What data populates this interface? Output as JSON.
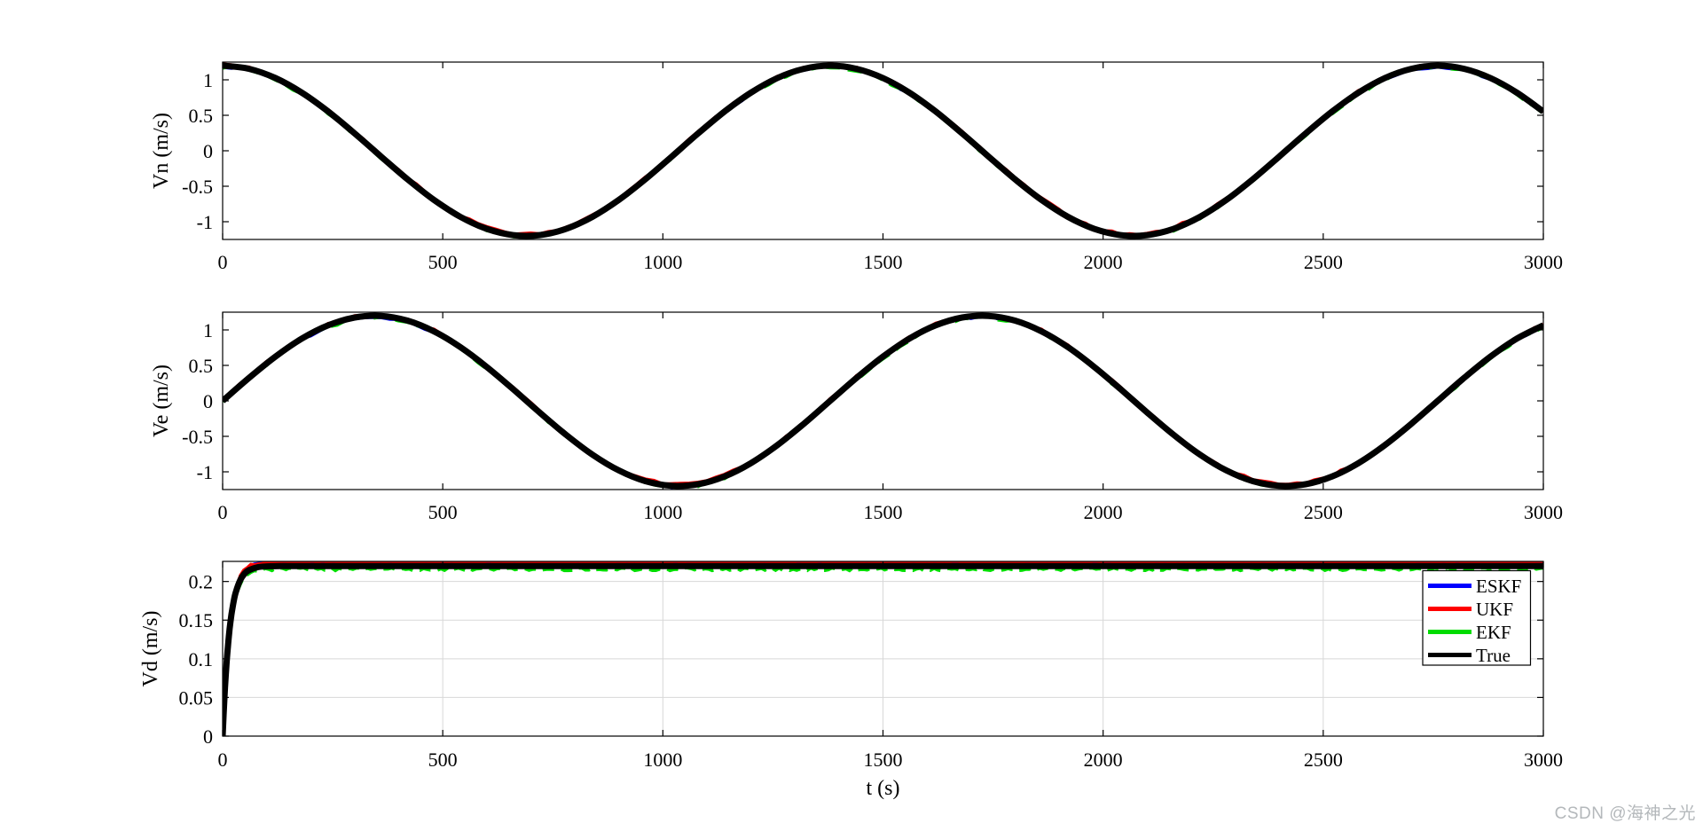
{
  "watermark": {
    "text": "CSDN @海神之光",
    "color": "#b4b8bb"
  },
  "figure": {
    "background": "#ffffff",
    "text_color": "#000000",
    "grid_color": "#d8d8d8",
    "axis_color": "#000000"
  },
  "legend": {
    "entries": [
      "ESKF",
      "UKF",
      "EKF",
      "True"
    ],
    "colors": [
      "#0000ff",
      "#ff0000",
      "#00dc00",
      "#000000"
    ],
    "position": "inside top-right of third subplot",
    "border_color": "#000000",
    "background": "#ffffff"
  },
  "chart_data": [
    {
      "type": "line",
      "title": "",
      "ylabel": "Vn (m/s)",
      "xlabel": "",
      "xlim": [
        0,
        3000
      ],
      "ylim": [
        -1.25,
        1.25
      ],
      "xticks": [
        0,
        500,
        1000,
        1500,
        2000,
        2500,
        3000
      ],
      "xtick_labels": [
        "0",
        "500",
        "1000",
        "1500",
        "2000",
        "2500",
        "3000"
      ],
      "yticks": [
        1,
        0.5,
        0,
        -0.5,
        -1
      ],
      "ytick_labels": [
        "1",
        "0.5",
        "0",
        "-0.5",
        "-1"
      ],
      "grid": false,
      "note": "Vn = 1.2*cos(2*pi*t/1380); ESKF, UKF, EKF estimates visually overlap the True curve",
      "t": [
        0,
        60,
        120,
        180,
        240,
        300,
        360,
        420,
        480,
        540,
        600,
        660,
        720,
        780,
        840,
        900,
        960,
        1020,
        1080,
        1140,
        1200,
        1260,
        1320,
        1380,
        1440,
        1500,
        1560,
        1620,
        1680,
        1740,
        1800,
        1860,
        1920,
        1980,
        2040,
        2100,
        2160,
        2220,
        2280,
        2340,
        2400,
        2460,
        2520,
        2580,
        2640,
        2700,
        2760,
        2820,
        2880,
        2940,
        3000
      ],
      "true_y": [
        1.2,
        1.1555,
        1.0253,
        0.8191,
        0.5521,
        0.2441,
        -0.0819,
        -0.4019,
        -0.692,
        -0.9309,
        -1.1007,
        -1.1888,
        -1.1888,
        -1.1007,
        -0.9309,
        -0.692,
        -0.4019,
        -0.0819,
        0.2441,
        0.5521,
        0.8191,
        1.0253,
        1.1555,
        1.2,
        1.1555,
        1.0253,
        0.8191,
        0.5521,
        0.2441,
        -0.0819,
        -0.4019,
        -0.692,
        -0.9309,
        -1.1007,
        -1.1888,
        -1.1888,
        -1.1007,
        -0.9309,
        -0.692,
        -0.4019,
        -0.0819,
        0.2441,
        0.5521,
        0.8191,
        1.0253,
        1.1555,
        1.2,
        1.1555,
        1.0253,
        0.8191,
        0.5521
      ],
      "series": [
        {
          "name": "ESKF",
          "color": "#0000ff",
          "width": 4,
          "offset": -0.006,
          "noise": 0.015,
          "dash": ""
        },
        {
          "name": "UKF",
          "color": "#ff0000",
          "width": 4,
          "offset": 0.013,
          "noise": 0.016,
          "dash": ""
        },
        {
          "name": "EKF",
          "color": "#00dc00",
          "width": 4,
          "offset": -0.015,
          "noise": 0.018,
          "dash": "16 9"
        },
        {
          "name": "True",
          "color": "#000000",
          "width": 7,
          "offset": 0,
          "noise": 0,
          "dash": ""
        }
      ]
    },
    {
      "type": "line",
      "title": "",
      "ylabel": "Ve (m/s)",
      "xlabel": "",
      "xlim": [
        0,
        3000
      ],
      "ylim": [
        -1.25,
        1.25
      ],
      "xticks": [
        0,
        500,
        1000,
        1500,
        2000,
        2500,
        3000
      ],
      "xtick_labels": [
        "0",
        "500",
        "1000",
        "1500",
        "2000",
        "2500",
        "3000"
      ],
      "yticks": [
        1,
        0.5,
        0,
        -0.5,
        -1
      ],
      "ytick_labels": [
        "1",
        "0.5",
        "0",
        "-0.5",
        "-1"
      ],
      "grid": false,
      "note": "Ve = 1.2*sin(2*pi*t/1380); ESKF, UKF, EKF estimates visually overlap the True curve",
      "t": [
        0,
        60,
        120,
        180,
        240,
        300,
        360,
        420,
        480,
        540,
        600,
        660,
        720,
        780,
        840,
        900,
        960,
        1020,
        1080,
        1140,
        1200,
        1260,
        1320,
        1380,
        1440,
        1500,
        1560,
        1620,
        1680,
        1740,
        1800,
        1860,
        1920,
        1980,
        2040,
        2100,
        2160,
        2220,
        2280,
        2340,
        2400,
        2460,
        2520,
        2580,
        2640,
        2700,
        2760,
        2820,
        2880,
        2940,
        3000
      ],
      "true_y": [
        0,
        0.3238,
        0.6235,
        0.877,
        1.0655,
        1.1749,
        1.1972,
        1.1307,
        0.9804,
        0.7573,
        0.4781,
        0.1634,
        -0.1634,
        -0.4781,
        -0.7573,
        -0.9804,
        -1.1307,
        -1.1972,
        -1.1749,
        -1.0655,
        -0.877,
        -0.6235,
        -0.3238,
        0,
        0.3238,
        0.6235,
        0.877,
        1.0655,
        1.1749,
        1.1972,
        1.1307,
        0.9804,
        0.7573,
        0.4781,
        0.1634,
        -0.1634,
        -0.4781,
        -0.7573,
        -0.9804,
        -1.1307,
        -1.1972,
        -1.1749,
        -1.0655,
        -0.877,
        -0.6235,
        -0.3238,
        0,
        0.3238,
        0.6235,
        0.877,
        1.0655
      ],
      "series": [
        {
          "name": "ESKF",
          "color": "#0000ff",
          "width": 4,
          "offset": -0.006,
          "noise": 0.015,
          "dash": ""
        },
        {
          "name": "UKF",
          "color": "#ff0000",
          "width": 4,
          "offset": 0.013,
          "noise": 0.016,
          "dash": ""
        },
        {
          "name": "EKF",
          "color": "#00dc00",
          "width": 4,
          "offset": -0.015,
          "noise": 0.018,
          "dash": "16 9"
        },
        {
          "name": "True",
          "color": "#000000",
          "width": 7,
          "offset": 0,
          "noise": 0,
          "dash": ""
        }
      ]
    },
    {
      "type": "line",
      "title": "",
      "ylabel": "Vd (m/s)",
      "xlabel": "t (s)",
      "xlim": [
        0,
        3000
      ],
      "ylim": [
        0,
        0.226
      ],
      "xticks": [
        0,
        500,
        1000,
        1500,
        2000,
        2500,
        3000
      ],
      "xtick_labels": [
        "0",
        "500",
        "1000",
        "1500",
        "2000",
        "2500",
        "3000"
      ],
      "yticks": [
        0.2,
        0.15,
        0.1,
        0.05,
        0
      ],
      "ytick_labels": [
        "0.2",
        "0.15",
        "0.1",
        "0.05",
        "0"
      ],
      "grid": true,
      "note": "Vd rises from 0 and settles at ~0.22 m/s; ESKF/UKF noise band just above True, EKF dashed just below",
      "steady_state_value": 0.22,
      "t": [
        0,
        4,
        8,
        12,
        16,
        20,
        25,
        30,
        40,
        50,
        60,
        80,
        100,
        130,
        160,
        200,
        300,
        500,
        800,
        1200,
        1600,
        2000,
        2400,
        2800,
        3000
      ],
      "true_y": [
        0,
        0.0487,
        0.0866,
        0.1161,
        0.1391,
        0.157,
        0.1739,
        0.1863,
        0.2019,
        0.2103,
        0.2148,
        0.2185,
        0.2196,
        0.2199,
        0.22,
        0.22,
        0.22,
        0.22,
        0.22,
        0.22,
        0.22,
        0.22,
        0.22,
        0.22,
        0.22
      ],
      "series": [
        {
          "name": "ESKF",
          "color": "#0000ff",
          "width": 3.5,
          "offset": 0.0047,
          "noise": 0.0011,
          "dash": ""
        },
        {
          "name": "UKF",
          "color": "#ff0000",
          "width": 3.5,
          "offset": 0.0053,
          "noise": 0.0013,
          "dash": ""
        },
        {
          "name": "EKF",
          "color": "#00dc00",
          "width": 3.5,
          "offset": -0.0042,
          "noise": 0.0018,
          "dash": "13 8"
        },
        {
          "name": "True",
          "color": "#000000",
          "width": 7,
          "offset": 0,
          "noise": 0,
          "dash": ""
        }
      ]
    }
  ]
}
